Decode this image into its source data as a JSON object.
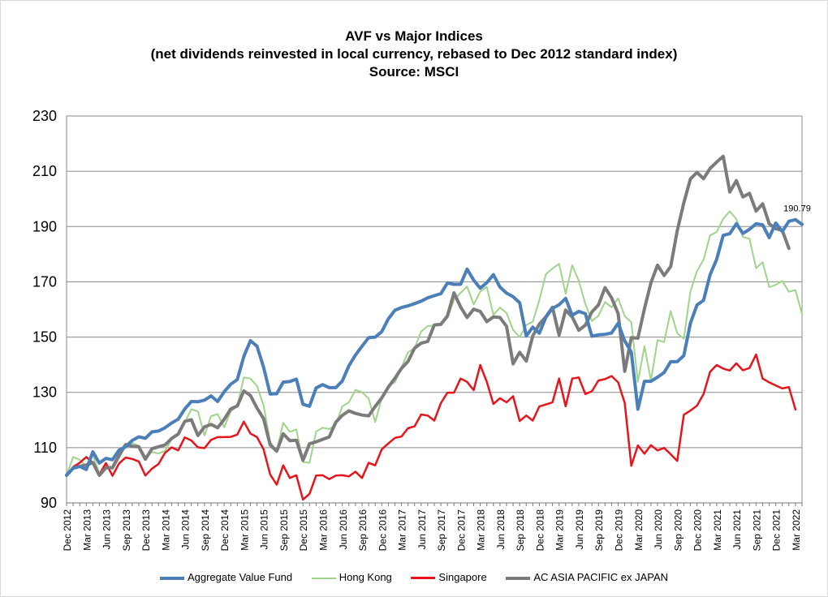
{
  "chart_data": {
    "type": "line",
    "title_lines": [
      "AVF vs Major  Indices",
      "(net dividends reinvested in local currency, rebased to Dec 2012 standard index)",
      "Source: MSCI"
    ],
    "xlabel": "",
    "ylabel": "",
    "ylim": [
      90,
      230
    ],
    "yticks": [
      90,
      110,
      130,
      150,
      170,
      190,
      210,
      230
    ],
    "x_tick_labels": [
      "Dec 2012",
      "Mar 2013",
      "Jun 2013",
      "Sep 2013",
      "Dec 2013",
      "Mar 2014",
      "Jun 2014",
      "Sep 2014",
      "Dec 2014",
      "Mar 2015",
      "Jun 2015",
      "Sep 2015",
      "Dec 2015",
      "Mar 2016",
      "Jun 2016",
      "Sep 2016",
      "Dec 2016",
      "Mar 2017",
      "Jun 2017",
      "Sep 2017",
      "Dec 2017",
      "Mar 2018",
      "Jun 2018",
      "Sep 2018",
      "Dec 2018",
      "Mar 2019",
      "Jun 2019",
      "Sep 2019",
      "Dec 2019",
      "Mar 2020",
      "Jun 2020",
      "Sep 2020",
      "Dec 2020",
      "Mar 2021",
      "Jun 2021",
      "Sep 2021",
      "Dec 2021",
      "Mar 2022"
    ],
    "grid": true,
    "legend_position": "bottom",
    "annotation": "190.79",
    "series": [
      {
        "name": "Aggregate Value Fund",
        "color": "#4a7fba",
        "values": [
          100.0,
          102.6,
          103.2,
          102.1,
          108.5,
          104.4,
          106.1,
          105.6,
          109.1,
          110.3,
          112.6,
          113.9,
          113.4,
          115.7,
          116.0,
          117.2,
          118.9,
          120.3,
          124.0,
          126.7,
          126.6,
          127.2,
          128.7,
          126.7,
          130.2,
          132.9,
          134.6,
          143.0,
          148.7,
          146.7,
          139.1,
          129.4,
          129.5,
          133.7,
          133.9,
          134.8,
          125.7,
          125.0,
          131.6,
          132.8,
          131.7,
          131.7,
          134.1,
          139.6,
          143.5,
          146.7,
          149.8,
          150.0,
          152.0,
          156.6,
          159.7,
          160.7,
          161.3,
          162.1,
          163.0,
          164.2,
          165.0,
          165.7,
          169.6,
          169.1,
          169.1,
          174.6,
          170.6,
          167.7,
          169.7,
          172.6,
          168.1,
          165.9,
          164.6,
          162.4,
          150.4,
          153.6,
          151.4,
          157.2,
          160.4,
          161.7,
          164.0,
          157.9,
          159.3,
          158.5,
          150.3,
          150.8,
          151.0,
          151.5,
          155.0,
          148.6,
          144.6,
          123.9,
          134.0,
          134.0,
          135.5,
          137.2,
          141.1,
          141.1,
          143.3,
          155.0,
          161.6,
          163.3,
          172.5,
          178.1,
          186.8,
          187.4,
          191.0,
          187.5,
          189.0,
          191.0,
          190.6,
          186.0,
          191.3,
          188.2,
          191.9,
          192.5,
          190.8
        ]
      },
      {
        "name": "Hong Kong",
        "color": "#9fd48b",
        "values": [
          100.0,
          106.6,
          105.6,
          103.2,
          107.4,
          100.5,
          103.5,
          102.1,
          106.3,
          110.7,
          111.6,
          110.7,
          106.8,
          108.4,
          107.9,
          108.8,
          113.0,
          114.6,
          119.1,
          123.9,
          123.1,
          114.4,
          121.4,
          122.1,
          117.4,
          123.1,
          125.0,
          135.4,
          135.0,
          132.3,
          125.3,
          112.1,
          108.7,
          119.0,
          115.7,
          116.6,
          104.8,
          104.5,
          115.8,
          117.2,
          116.7,
          118.3,
          125.0,
          126.4,
          130.9,
          130.0,
          127.8,
          119.3,
          127.9,
          132.4,
          133.6,
          139.1,
          144.5,
          146.1,
          152.0,
          154.0,
          154.1,
          154.4,
          156.9,
          163.5,
          166.0,
          168.3,
          161.8,
          166.5,
          168.2,
          158.0,
          160.7,
          158.7,
          152.6,
          150.0,
          154.4,
          155.5,
          163.4,
          172.8,
          174.8,
          176.5,
          165.7,
          176.0,
          170.4,
          162.0,
          155.8,
          157.7,
          162.7,
          160.8,
          164.0,
          157.6,
          155.4,
          133.8,
          146.7,
          134.2,
          148.9,
          148.2,
          159.4,
          151.4,
          149.4,
          166.5,
          173.9,
          178.0,
          186.8,
          188.0,
          192.8,
          195.5,
          192.7,
          186.2,
          185.6,
          174.9,
          177.1,
          168.1,
          168.9,
          170.3,
          166.4,
          167.0,
          158.3
        ]
      },
      {
        "name": "Singapore",
        "color": "#e8141c",
        "values": [
          100.0,
          103.0,
          104.5,
          106.6,
          104.5,
          100.3,
          104.4,
          99.8,
          104.3,
          106.4,
          105.9,
          105.0,
          99.9,
          102.4,
          104.1,
          108.1,
          110.1,
          109.0,
          113.7,
          112.6,
          110.1,
          109.8,
          112.8,
          113.8,
          113.8,
          113.9,
          114.7,
          119.4,
          115.1,
          113.8,
          109.4,
          100.3,
          96.6,
          103.6,
          99.0,
          100.0,
          91.2,
          93.3,
          99.9,
          100.0,
          98.6,
          99.9,
          100.0,
          99.6,
          101.3,
          99.0,
          104.5,
          103.6,
          109.4,
          111.5,
          113.5,
          114.0,
          117.0,
          117.7,
          122.0,
          121.6,
          119.8,
          126.1,
          129.9,
          129.9,
          135.0,
          133.8,
          130.8,
          139.9,
          133.8,
          125.8,
          127.9,
          126.4,
          128.6,
          119.6,
          121.6,
          119.8,
          124.9,
          125.6,
          126.4,
          135.0,
          125.0,
          135.0,
          135.4,
          129.4,
          130.4,
          134.3,
          134.8,
          135.9,
          133.6,
          126.2,
          103.4,
          110.8,
          107.8,
          110.9,
          109.0,
          109.9,
          107.6,
          105.2,
          121.9,
          123.4,
          125.2,
          129.4,
          137.4,
          139.9,
          138.6,
          137.9,
          140.5,
          138.0,
          138.8,
          143.7,
          135.0,
          133.6,
          132.5,
          131.4,
          131.9,
          123.8
        ]
      },
      {
        "name": "AC ASIA PACIFIC ex JAPAN",
        "color": "#7b7b7b",
        "values": [
          100.0,
          102.5,
          103.2,
          103.7,
          104.6,
          100.0,
          102.7,
          102.8,
          107.2,
          111.1,
          110.5,
          110.3,
          105.8,
          109.6,
          110.3,
          111.0,
          113.3,
          114.9,
          119.5,
          120.1,
          114.4,
          117.5,
          118.4,
          117.2,
          120.2,
          124.0,
          125.1,
          130.5,
          128.9,
          124.3,
          120.5,
          111.0,
          108.7,
          115.0,
          112.5,
          112.7,
          105.4,
          111.4,
          112.1,
          113.0,
          113.9,
          119.2,
          121.7,
          123.3,
          122.4,
          121.8,
          121.5,
          124.9,
          128.0,
          131.9,
          135.1,
          138.7,
          141.2,
          146.0,
          147.8,
          148.4,
          154.4,
          154.6,
          157.7,
          166.0,
          160.9,
          157.1,
          160.1,
          159.3,
          155.6,
          157.3,
          157.1,
          153.9,
          140.3,
          144.5,
          141.3,
          150.4,
          154.7,
          157.4,
          160.8,
          150.7,
          159.8,
          157.3,
          152.5,
          154.3,
          159.1,
          161.6,
          167.9,
          164.2,
          158.5,
          137.6,
          149.8,
          149.6,
          160.3,
          169.7,
          176.0,
          172.3,
          175.5,
          188.5,
          198.6,
          207.2,
          209.6,
          207.3,
          211.0,
          213.3,
          215.4,
          202.5,
          206.6,
          200.7,
          202.0,
          195.6,
          198.2,
          191.0,
          189.2,
          188.6,
          182.1
        ]
      }
    ]
  }
}
